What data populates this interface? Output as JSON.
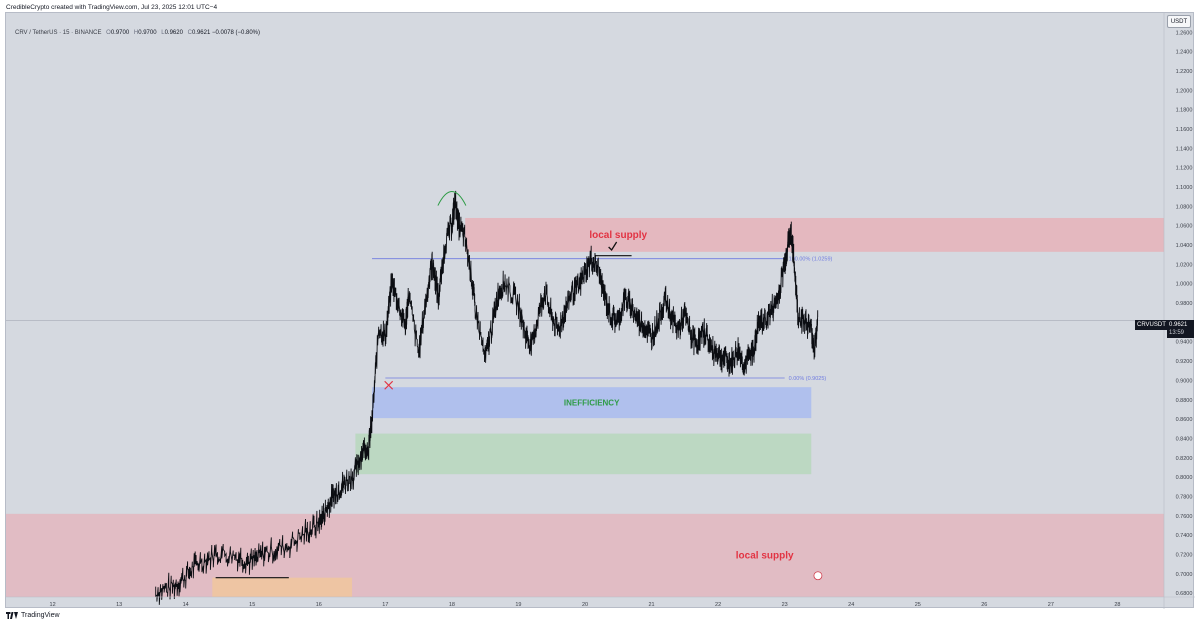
{
  "header": {
    "caption": "CredibleCrypto created with TradingView.com, Jul 23, 2025 12:01 UTC−4"
  },
  "symbol_line": {
    "pair": "CRV / TetherUS · 15 · BINANCE",
    "o_label": "O",
    "o": "0.9700",
    "h_label": "H",
    "h": "0.9700",
    "l_label": "L",
    "l": "0.9620",
    "c_label": "C",
    "c": "0.9621",
    "change": "−0.0078 (−0.80%)"
  },
  "currency_button": "USDT",
  "last_price": {
    "symbol": "CRVUSDT",
    "price": "0.9621",
    "countdown": "13:59"
  },
  "footer": {
    "brand": "TradingView"
  },
  "colors": {
    "candle": "#0b0d12",
    "supply_zone": "#e9a9b1",
    "inefficiency_zone": "#a9bbee",
    "green_zone": "#b7d7bc",
    "orange_zone": "#f0c79e",
    "supply_text": "#e23343",
    "inefficiency_text": "#2e9b46",
    "fib_line": "#6f7be0",
    "arc": "#2e9b46",
    "cross": "#e23343"
  },
  "chart_data": {
    "type": "line",
    "x_axis_labels": [
      "12",
      "13",
      "14",
      "15",
      "16",
      "17",
      "18",
      "19",
      "20",
      "21",
      "22",
      "23",
      "24",
      "25",
      "26",
      "27",
      "28"
    ],
    "y_axis_labels": [
      "1.2600",
      "1.2400",
      "1.2200",
      "1.2000",
      "1.1800",
      "1.1600",
      "1.1400",
      "1.1200",
      "1.1000",
      "1.0800",
      "1.0600",
      "1.0400",
      "1.0200",
      "1.0000",
      "0.9800",
      "0.9600",
      "0.9400",
      "0.9200",
      "0.9000",
      "0.8800",
      "0.8600",
      "0.8400",
      "0.8200",
      "0.8000",
      "0.7800",
      "0.7600",
      "0.7400",
      "0.7200",
      "0.7000",
      "0.6800"
    ],
    "ylim": [
      0.676,
      1.28
    ],
    "xlim": [
      11.3,
      28.7
    ],
    "series": [
      {
        "x": [
          13.55,
          13.8,
          14.0,
          14.2,
          14.5,
          14.8,
          15.0,
          15.2,
          15.5,
          15.8,
          16.0,
          16.1,
          16.2,
          16.3,
          16.4,
          16.55,
          16.65,
          16.75,
          16.8,
          16.9,
          17.0,
          17.1,
          17.2,
          17.3,
          17.35,
          17.5,
          17.6,
          17.7,
          17.75,
          17.8,
          17.9,
          18.0,
          18.05,
          18.1,
          18.2,
          18.3,
          18.35,
          18.5,
          18.6,
          18.7,
          18.8,
          19.0,
          19.1,
          19.2,
          19.3,
          19.4,
          19.5,
          19.6,
          19.7,
          19.8,
          19.9,
          20.0,
          20.1,
          20.2,
          20.3,
          20.4,
          20.5,
          20.6,
          20.7,
          20.8,
          20.9,
          21.0,
          21.1,
          21.2,
          21.3,
          21.4,
          21.5,
          21.6,
          21.7,
          21.8,
          21.9,
          22.0,
          22.1,
          22.2,
          22.3,
          22.4,
          22.5,
          22.55,
          22.6,
          22.7,
          22.8,
          22.9,
          23.0,
          23.05,
          23.1,
          23.15,
          23.2,
          23.3,
          23.4,
          23.45,
          23.5
        ],
        "y": [
          0.682,
          0.686,
          0.698,
          0.712,
          0.722,
          0.718,
          0.712,
          0.722,
          0.728,
          0.742,
          0.752,
          0.765,
          0.778,
          0.788,
          0.795,
          0.805,
          0.828,
          0.832,
          0.858,
          0.955,
          0.945,
          1.002,
          0.978,
          0.955,
          0.988,
          0.928,
          0.978,
          1.022,
          1.005,
          0.985,
          1.042,
          1.062,
          1.085,
          1.062,
          1.045,
          1.005,
          0.975,
          0.922,
          0.955,
          0.992,
          1.002,
          0.978,
          0.948,
          0.935,
          0.968,
          0.992,
          0.965,
          0.952,
          0.972,
          0.992,
          0.995,
          1.012,
          1.025,
          1.015,
          0.985,
          0.965,
          0.962,
          0.985,
          0.975,
          0.962,
          0.955,
          0.945,
          0.962,
          0.985,
          0.965,
          0.952,
          0.968,
          0.945,
          0.938,
          0.952,
          0.932,
          0.928,
          0.922,
          0.918,
          0.932,
          0.915,
          0.928,
          0.935,
          0.958,
          0.962,
          0.972,
          0.985,
          1.022,
          1.042,
          1.052,
          1.015,
          0.968,
          0.962,
          0.952,
          0.932,
          0.962
        ]
      }
    ],
    "annotations": {
      "supply_upper": {
        "label": "local supply",
        "x0": 18.2,
        "x1": 28.7,
        "y0": 1.033,
        "y1": 1.068
      },
      "supply_lower": {
        "label": "local supply",
        "x0": 11.3,
        "x1": 28.7,
        "y0": 0.676,
        "y1": 0.762
      },
      "inefficiency": {
        "label": "INEFFICIENCY",
        "x0": 16.8,
        "x1": 23.4,
        "y0": 0.861,
        "y1": 0.893
      },
      "green_box": {
        "x0": 16.55,
        "x1": 23.4,
        "y0": 0.803,
        "y1": 0.845
      },
      "orange_box": {
        "x0": 14.4,
        "x1": 16.5,
        "y0": 0.676,
        "y1": 0.696
      },
      "fib_top": {
        "label": "100.00% (1.0259)",
        "price": 1.0259,
        "x0": 16.8,
        "x1": 23.0
      },
      "fib_bottom": {
        "label": "0.00% (0.9025)",
        "price": 0.9025,
        "x0": 17.0,
        "x1": 23.0
      },
      "current_price": 0.9621,
      "black_line_low": {
        "price": 0.696,
        "x0": 14.45,
        "x1": 15.55
      },
      "black_line_high": {
        "price": 1.029,
        "x0": 20.15,
        "x1": 20.7
      }
    }
  }
}
